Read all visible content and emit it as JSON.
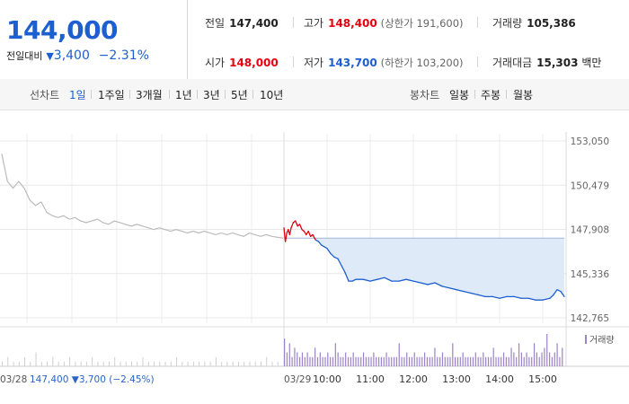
{
  "summary": {
    "price": "144,000",
    "change_label": "전일대비",
    "change_arrow": "▼",
    "change_amount": "3,400",
    "change_percent": "−2.31%",
    "prev_close": {
      "label": "전일",
      "value": "147,400"
    },
    "high": {
      "label": "고가",
      "value": "148,400",
      "sub": "(상한가 191,600)"
    },
    "volume": {
      "label": "거래량",
      "value": "105,386"
    },
    "open": {
      "label": "시가",
      "value": "148,000"
    },
    "low": {
      "label": "저가",
      "value": "143,700",
      "sub": "(하한가 103,200)"
    },
    "trade_value": {
      "label": "거래대금",
      "value": "15,303",
      "unit": "백만"
    }
  },
  "toolbar": {
    "line_label": "선차트",
    "line_ranges": [
      "1일",
      "1주일",
      "3개월",
      "1년",
      "3년",
      "5년",
      "10년"
    ],
    "active_range": "1일",
    "candle_label": "봉차트",
    "candle_ranges": [
      "일봉",
      "주봉",
      "월봉"
    ]
  },
  "colors": {
    "blue": "#1d5fd0",
    "red": "#e5000f",
    "prev_day_line": "#bbbbbb",
    "fill": "#dfeaf9",
    "volume": "#9b82c9"
  },
  "chart_data": {
    "type": "line",
    "y_ticks": [
      "153,050",
      "150,479",
      "147,908",
      "145,336",
      "142,765"
    ],
    "ylim": [
      142765,
      153050
    ],
    "reference_value": 147400,
    "x_labels": [
      "03/28",
      "03/29",
      "10:00",
      "11:00",
      "12:00",
      "13:00",
      "14:00",
      "15:00"
    ],
    "prev_day_caption": {
      "date": "03/28",
      "close": "147,400",
      "change": "▼3,700",
      "pct": "(−2.45%)"
    },
    "legend_volume": "거래량",
    "prev_day_series": [
      [
        0.0,
        152300
      ],
      [
        0.02,
        150700
      ],
      [
        0.04,
        150300
      ],
      [
        0.06,
        150700
      ],
      [
        0.08,
        150300
      ],
      [
        0.1,
        149600
      ],
      [
        0.12,
        149300
      ],
      [
        0.14,
        149500
      ],
      [
        0.16,
        148900
      ],
      [
        0.18,
        148700
      ],
      [
        0.2,
        148600
      ],
      [
        0.22,
        148700
      ],
      [
        0.24,
        148500
      ],
      [
        0.26,
        148600
      ],
      [
        0.28,
        148400
      ],
      [
        0.3,
        148300
      ],
      [
        0.32,
        148400
      ],
      [
        0.34,
        148500
      ],
      [
        0.36,
        148300
      ],
      [
        0.38,
        148200
      ],
      [
        0.4,
        148400
      ],
      [
        0.42,
        148300
      ],
      [
        0.44,
        148200
      ],
      [
        0.46,
        148100
      ],
      [
        0.48,
        148200
      ],
      [
        0.5,
        148100
      ],
      [
        0.52,
        148000
      ],
      [
        0.54,
        147900
      ],
      [
        0.56,
        148000
      ],
      [
        0.58,
        147900
      ],
      [
        0.6,
        147800
      ],
      [
        0.62,
        147900
      ],
      [
        0.64,
        147800
      ],
      [
        0.66,
        147700
      ],
      [
        0.68,
        147800
      ],
      [
        0.7,
        147700
      ],
      [
        0.72,
        147800
      ],
      [
        0.74,
        147700
      ],
      [
        0.76,
        147600
      ],
      [
        0.78,
        147700
      ],
      [
        0.8,
        147600
      ],
      [
        0.82,
        147700
      ],
      [
        0.84,
        147600
      ],
      [
        0.86,
        147500
      ],
      [
        0.88,
        147700
      ],
      [
        0.9,
        147600
      ],
      [
        0.92,
        147500
      ],
      [
        0.94,
        147600
      ],
      [
        0.96,
        147500
      ],
      [
        1.0,
        147400
      ]
    ],
    "today_series": [
      [
        "09:00",
        148000
      ],
      [
        "09:02",
        147200
      ],
      [
        "09:04",
        147700
      ],
      [
        "09:06",
        147900
      ],
      [
        "09:08",
        147600
      ],
      [
        "09:10",
        148000
      ],
      [
        "09:13",
        148300
      ],
      [
        "09:16",
        148400
      ],
      [
        "09:19",
        148100
      ],
      [
        "09:22",
        148200
      ],
      [
        "09:25",
        147900
      ],
      [
        "09:28",
        147800
      ],
      [
        "09:31",
        147600
      ],
      [
        "09:34",
        147800
      ],
      [
        "09:37",
        147500
      ],
      [
        "09:40",
        147600
      ],
      [
        "09:44",
        147300
      ],
      [
        "09:48",
        147200
      ],
      [
        "09:52",
        147000
      ],
      [
        "09:56",
        146900
      ],
      [
        "10:00",
        146800
      ],
      [
        "10:05",
        146500
      ],
      [
        "10:10",
        146300
      ],
      [
        "10:15",
        146200
      ],
      [
        "10:20",
        145800
      ],
      [
        "10:25",
        145400
      ],
      [
        "10:30",
        144900
      ],
      [
        "10:35",
        144900
      ],
      [
        "10:40",
        145000
      ],
      [
        "10:50",
        145000
      ],
      [
        "11:00",
        144900
      ],
      [
        "11:10",
        145000
      ],
      [
        "11:20",
        145100
      ],
      [
        "11:30",
        144900
      ],
      [
        "11:40",
        144900
      ],
      [
        "11:50",
        145000
      ],
      [
        "12:00",
        144900
      ],
      [
        "12:10",
        144800
      ],
      [
        "12:20",
        144700
      ],
      [
        "12:30",
        144800
      ],
      [
        "12:40",
        144600
      ],
      [
        "12:50",
        144500
      ],
      [
        "13:00",
        144400
      ],
      [
        "13:10",
        144300
      ],
      [
        "13:20",
        144200
      ],
      [
        "13:30",
        144100
      ],
      [
        "13:40",
        144000
      ],
      [
        "13:50",
        144000
      ],
      [
        "14:00",
        143900
      ],
      [
        "14:10",
        144000
      ],
      [
        "14:20",
        144000
      ],
      [
        "14:30",
        143900
      ],
      [
        "14:40",
        143900
      ],
      [
        "14:50",
        143800
      ],
      [
        "15:00",
        143800
      ],
      [
        "15:10",
        143900
      ],
      [
        "15:15",
        144100
      ],
      [
        "15:20",
        144400
      ],
      [
        "15:25",
        144300
      ],
      [
        "15:30",
        144000
      ]
    ],
    "volume_prev": [
      1,
      2,
      1,
      1,
      2,
      1,
      3,
      1,
      1,
      2,
      1,
      1,
      2,
      1,
      1,
      1,
      2,
      1,
      1,
      1,
      2,
      1,
      1,
      1,
      1,
      2,
      1,
      1,
      1,
      1,
      1,
      2,
      1,
      1,
      1,
      1,
      1,
      1,
      2,
      1,
      1,
      1,
      1,
      1,
      1,
      1,
      1,
      2,
      1,
      1
    ],
    "volume_today": [
      6,
      3,
      5,
      2,
      4,
      3,
      2,
      3,
      2,
      3,
      2,
      2,
      4,
      2,
      3,
      2,
      2,
      3,
      2,
      2,
      5,
      3,
      2,
      2,
      3,
      2,
      2,
      3,
      2,
      2,
      2,
      3,
      2,
      2,
      2,
      3,
      2,
      2,
      2,
      2,
      3,
      2,
      2,
      2,
      2,
      5,
      2,
      2,
      3,
      2,
      2,
      3,
      2,
      2,
      2,
      3,
      2,
      2,
      2,
      4,
      2,
      2,
      3,
      2,
      2,
      2,
      5,
      2,
      2,
      2,
      3,
      2,
      2,
      2,
      2,
      3,
      2,
      2,
      3,
      2,
      2,
      2,
      4,
      2,
      2,
      2,
      3,
      2,
      2,
      4,
      3,
      2,
      5,
      3,
      2,
      3,
      2,
      2,
      5,
      3,
      2,
      3,
      4,
      7,
      3,
      2,
      3,
      5,
      2,
      4
    ]
  }
}
